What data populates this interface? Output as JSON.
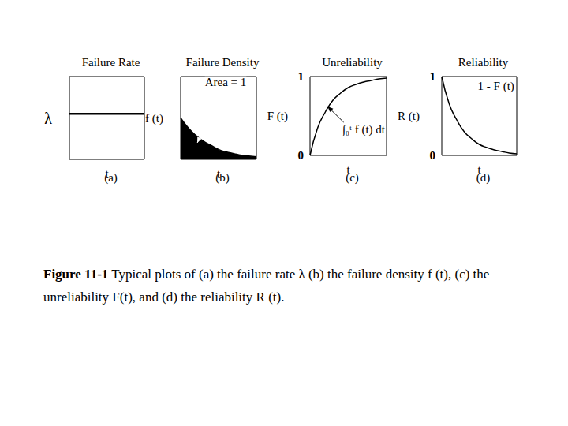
{
  "chart_data": [
    {
      "type": "line",
      "title": "Failure Rate",
      "xlabel": "t",
      "subtitle": "(a)",
      "ylabel": "λ",
      "x": [
        0,
        1,
        2,
        3,
        4,
        5,
        6,
        7,
        8,
        9,
        10
      ],
      "values": [
        0.55,
        0.55,
        0.55,
        0.55,
        0.55,
        0.55,
        0.55,
        0.55,
        0.55,
        0.55,
        0.55
      ],
      "xlim": [
        0,
        10
      ],
      "ylim": [
        0,
        1
      ],
      "tick_labels": false,
      "color": "#000000",
      "grid": false
    },
    {
      "type": "area",
      "title": "Failure Density",
      "xlabel": "t",
      "subtitle": "(b)",
      "ylabel": "f (t)",
      "x": [
        0,
        1,
        2,
        3,
        4,
        5,
        6,
        7,
        8,
        9,
        10
      ],
      "values": [
        0.5,
        0.38,
        0.29,
        0.22,
        0.17,
        0.12,
        0.09,
        0.07,
        0.05,
        0.04,
        0.03
      ],
      "xlim": [
        0,
        10
      ],
      "ylim": [
        0,
        1
      ],
      "tick_labels": false,
      "color": "#000000",
      "grid": false,
      "annotations": [
        "Area = 1"
      ]
    },
    {
      "type": "line",
      "title": "Unreliability",
      "xlabel": "t",
      "subtitle": "(c)",
      "ylabel": "F (t)",
      "x": [
        0,
        1,
        2,
        3,
        4,
        5,
        6,
        7,
        8,
        9,
        10
      ],
      "values": [
        0,
        0.35,
        0.55,
        0.7,
        0.79,
        0.86,
        0.9,
        0.93,
        0.95,
        0.97,
        0.98
      ],
      "xlim": [
        0,
        10
      ],
      "ylim": [
        0,
        1
      ],
      "yticks": [
        0,
        1
      ],
      "tick_labels": "y",
      "color": "#000000",
      "grid": false,
      "annotations": [
        "∫₀ᵗ f (t) dt"
      ]
    },
    {
      "type": "line",
      "title": "Reliability",
      "xlabel": "t",
      "subtitle": "(d)",
      "ylabel": "R (t)",
      "x": [
        0,
        1,
        2,
        3,
        4,
        5,
        6,
        7,
        8,
        9,
        10
      ],
      "values": [
        1,
        0.65,
        0.45,
        0.3,
        0.21,
        0.14,
        0.1,
        0.07,
        0.05,
        0.03,
        0.02
      ],
      "xlim": [
        0,
        10
      ],
      "ylim": [
        0,
        1
      ],
      "yticks": [
        0,
        1
      ],
      "tick_labels": "y",
      "color": "#000000",
      "grid": false,
      "annotations": [
        "1 - F (t)"
      ]
    }
  ],
  "caption": {
    "label": "Figure 11-1",
    "text": "Typical plots of (a) the failure rate λ (b) the failure density f (t), (c) the unreliability F(t), and (d) the reliability R (t)."
  }
}
